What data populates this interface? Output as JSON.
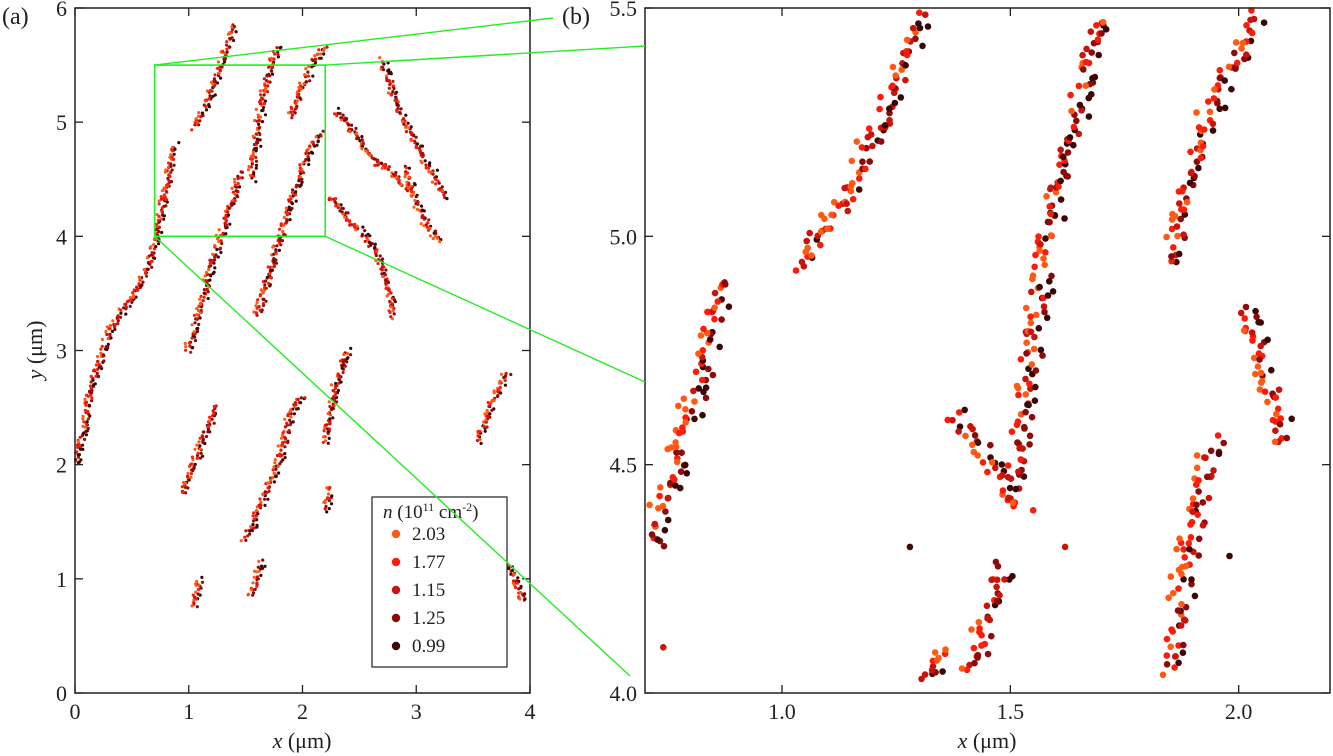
{
  "figure": {
    "colors": {
      "frame": "#231f20",
      "zoom": "#22ee22",
      "series": [
        "#ff5a14",
        "#ff1a0a",
        "#c8140a",
        "#8c0a0a",
        "#3c0606"
      ]
    }
  },
  "chart_data": [
    {
      "panel": "(a)",
      "type": "scatter",
      "xlabel_var": "x",
      "xlabel_unit": " (μm)",
      "ylabel_var": "y",
      "ylabel_unit": " (μm)",
      "xlim": [
        0,
        4
      ],
      "ylim": [
        0,
        6
      ],
      "xticks": [
        0,
        1,
        2,
        3,
        4
      ],
      "xtick_labels": [
        "0",
        "1",
        "2",
        "3",
        "4"
      ],
      "yticks": [
        0,
        1,
        2,
        3,
        4,
        5,
        6
      ],
      "ytick_labels": [
        "0",
        "1",
        "2",
        "3",
        "4",
        "5",
        "6"
      ],
      "zoom_box": {
        "x": [
          0.7,
          2.2
        ],
        "y": [
          4.0,
          5.5
        ]
      },
      "legend": {
        "title_var": "n",
        "title_unit": " (10",
        "title_exp1": "11",
        "title_mid": " cm",
        "title_exp2": "-2",
        "title_close": ")",
        "entries": [
          "2.03",
          "1.77",
          "1.15",
          "1.25",
          "0.99"
        ],
        "position": "lower-right"
      },
      "series_names": [
        "2.03",
        "1.77",
        "1.15",
        "1.25",
        "0.99"
      ],
      "tracks": [
        [
          [
            0.0,
            2.0
          ],
          [
            0.08,
            2.3
          ],
          [
            0.15,
            2.7
          ],
          [
            0.25,
            3.0
          ],
          [
            0.35,
            3.25
          ],
          [
            0.5,
            3.45
          ],
          [
            0.65,
            3.75
          ],
          [
            0.72,
            4.0
          ],
          [
            0.8,
            4.4
          ],
          [
            0.88,
            4.8
          ]
        ],
        [
          [
            1.05,
            4.95
          ],
          [
            1.15,
            5.15
          ],
          [
            1.25,
            5.4
          ],
          [
            1.35,
            5.7
          ],
          [
            1.4,
            5.85
          ]
        ],
        [
          [
            1.55,
            4.5
          ],
          [
            1.6,
            4.85
          ],
          [
            1.65,
            5.2
          ],
          [
            1.72,
            5.5
          ],
          [
            1.78,
            5.65
          ]
        ],
        [
          [
            1.9,
            5.05
          ],
          [
            2.0,
            5.3
          ],
          [
            2.1,
            5.55
          ],
          [
            2.2,
            5.65
          ]
        ],
        [
          [
            1.0,
            3.0
          ],
          [
            1.1,
            3.35
          ],
          [
            1.2,
            3.75
          ],
          [
            1.3,
            4.05
          ],
          [
            1.4,
            4.35
          ],
          [
            1.45,
            4.55
          ]
        ],
        [
          [
            1.6,
            3.3
          ],
          [
            1.75,
            3.8
          ],
          [
            1.85,
            4.15
          ],
          [
            1.95,
            4.45
          ],
          [
            2.05,
            4.75
          ],
          [
            2.15,
            4.9
          ]
        ],
        [
          [
            2.25,
            4.35
          ],
          [
            2.4,
            4.15
          ],
          [
            2.55,
            4.0
          ],
          [
            2.65,
            3.85
          ],
          [
            2.75,
            3.6
          ],
          [
            2.8,
            3.3
          ]
        ],
        [
          [
            2.3,
            5.1
          ],
          [
            2.5,
            4.85
          ],
          [
            2.65,
            4.65
          ],
          [
            2.8,
            4.55
          ],
          [
            2.95,
            4.4
          ]
        ],
        [
          [
            2.9,
            4.6
          ],
          [
            3.0,
            4.3
          ],
          [
            3.1,
            4.1
          ],
          [
            3.2,
            3.95
          ]
        ],
        [
          [
            2.7,
            5.55
          ],
          [
            2.85,
            5.1
          ],
          [
            3.0,
            4.8
          ],
          [
            3.15,
            4.55
          ],
          [
            3.25,
            4.35
          ]
        ],
        [
          [
            0.95,
            1.75
          ],
          [
            1.05,
            2.0
          ],
          [
            1.15,
            2.3
          ],
          [
            1.25,
            2.5
          ]
        ],
        [
          [
            1.5,
            1.35
          ],
          [
            1.6,
            1.55
          ],
          [
            1.7,
            1.8
          ],
          [
            1.8,
            2.05
          ],
          [
            1.9,
            2.45
          ],
          [
            2.0,
            2.6
          ]
        ],
        [
          [
            2.2,
            2.2
          ],
          [
            2.3,
            2.7
          ],
          [
            2.4,
            3.0
          ]
        ],
        [
          [
            3.55,
            2.2
          ],
          [
            3.65,
            2.5
          ],
          [
            3.8,
            2.8
          ]
        ],
        [
          [
            3.7,
            1.2
          ],
          [
            3.85,
            1.05
          ],
          [
            3.95,
            0.8
          ]
        ],
        [
          [
            1.55,
            0.85
          ],
          [
            1.6,
            1.0
          ],
          [
            1.65,
            1.15
          ]
        ],
        [
          [
            1.05,
            0.75
          ],
          [
            1.1,
            1.0
          ]
        ],
        [
          [
            2.2,
            1.6
          ],
          [
            2.25,
            1.8
          ]
        ]
      ]
    },
    {
      "panel": "(b)",
      "type": "scatter",
      "xlabel_var": "x",
      "xlabel_unit": " (μm)",
      "xlim": [
        0.7,
        2.2
      ],
      "ylim": [
        4.0,
        5.5
      ],
      "xticks": [
        1.0,
        1.5,
        2.0
      ],
      "xtick_labels": [
        "1.0",
        "1.5",
        "2.0"
      ],
      "yticks": [
        4.0,
        4.5,
        5.0,
        5.5
      ],
      "ytick_labels": [
        "4.0",
        "4.5",
        "5.0",
        "5.5"
      ],
      "series_names": [
        "2.03",
        "1.77",
        "1.15",
        "1.25",
        "0.99"
      ],
      "tracks": [
        [
          [
            0.72,
            4.32
          ],
          [
            0.74,
            4.42
          ],
          [
            0.77,
            4.5
          ],
          [
            0.79,
            4.58
          ],
          [
            0.81,
            4.65
          ],
          [
            0.83,
            4.73
          ],
          [
            0.85,
            4.82
          ],
          [
            0.87,
            4.9
          ]
        ],
        [
          [
            1.05,
            4.93
          ],
          [
            1.08,
            5.0
          ],
          [
            1.12,
            5.05
          ],
          [
            1.15,
            5.1
          ],
          [
            1.18,
            5.18
          ],
          [
            1.22,
            5.25
          ],
          [
            1.25,
            5.32
          ],
          [
            1.28,
            5.4
          ],
          [
            1.3,
            5.48
          ]
        ],
        [
          [
            1.5,
            4.4
          ],
          [
            1.52,
            4.55
          ],
          [
            1.54,
            4.7
          ],
          [
            1.56,
            4.85
          ],
          [
            1.58,
            4.98
          ],
          [
            1.6,
            5.08
          ],
          [
            1.62,
            5.18
          ],
          [
            1.65,
            5.3
          ],
          [
            1.68,
            5.4
          ],
          [
            1.7,
            5.48
          ]
        ],
        [
          [
            1.85,
            4.95
          ],
          [
            1.88,
            5.05
          ],
          [
            1.9,
            5.15
          ],
          [
            1.93,
            5.25
          ],
          [
            1.96,
            5.33
          ],
          [
            2.0,
            5.4
          ],
          [
            2.04,
            5.48
          ]
        ],
        [
          [
            2.02,
            4.85
          ],
          [
            2.05,
            4.75
          ],
          [
            2.08,
            4.65
          ],
          [
            2.1,
            4.55
          ]
        ],
        [
          [
            1.85,
            4.05
          ],
          [
            1.87,
            4.15
          ],
          [
            1.88,
            4.25
          ],
          [
            1.9,
            4.35
          ],
          [
            1.92,
            4.45
          ],
          [
            1.95,
            4.55
          ]
        ],
        [
          [
            1.42,
            4.05
          ],
          [
            1.44,
            4.12
          ],
          [
            1.46,
            4.2
          ],
          [
            1.48,
            4.28
          ]
        ],
        [
          [
            1.32,
            4.02
          ],
          [
            1.36,
            4.1
          ]
        ],
        [
          [
            1.38,
            4.6
          ],
          [
            1.45,
            4.52
          ],
          [
            1.48,
            4.45
          ]
        ]
      ],
      "isolated": [
        [
          1.4,
          4.62
        ],
        [
          1.62,
          4.32
        ],
        [
          1.28,
          4.32
        ],
        [
          0.74,
          4.1
        ],
        [
          1.98,
          4.3
        ],
        [
          1.55,
          4.4
        ]
      ]
    }
  ],
  "zoom_connectors": "green"
}
